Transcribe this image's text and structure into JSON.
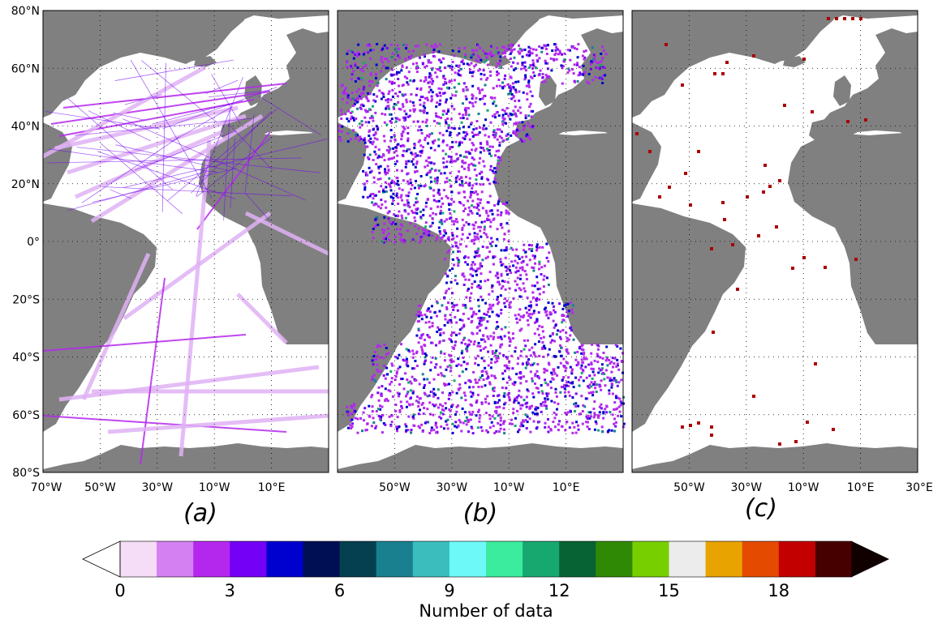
{
  "figure": {
    "panels": [
      {
        "id": "a",
        "label": "(a)",
        "lat_ticks": [
          "80°N",
          "60°N",
          "40°N",
          "20°N",
          "0°",
          "20°S",
          "40°S",
          "60°S",
          "80°S"
        ],
        "lon_ticks": [
          "70°W",
          "50°W",
          "30°W",
          "10°W",
          "10°E"
        ]
      },
      {
        "id": "b",
        "label": "(b)",
        "lat_ticks": [],
        "lon_ticks": [
          "50°W",
          "30°W",
          "10°W",
          "10°E"
        ]
      },
      {
        "id": "c",
        "label": "(c)",
        "lat_ticks": [],
        "lon_ticks": [
          "50°W",
          "30°W",
          "10°W",
          "10°E",
          "30°E"
        ]
      }
    ],
    "colorbar": {
      "title": "Number of data",
      "tick_labels": [
        "0",
        "3",
        "6",
        "9",
        "12",
        "15",
        "18"
      ],
      "tick_values": [
        0,
        3,
        6,
        9,
        12,
        15,
        18
      ],
      "min": 0,
      "max": 20,
      "extend": "both",
      "under_color": "#ffffff",
      "over_color": "#100000",
      "colors": [
        "#f5dcf7",
        "#d480f2",
        "#b428ee",
        "#7400f5",
        "#0000cf",
        "#000e54",
        "#054050",
        "#198090",
        "#3bbdbd",
        "#6ef9f9",
        "#3bec9e",
        "#17a870",
        "#076334",
        "#308904",
        "#78cf00",
        "#ececec",
        "#e8a300",
        "#e44a00",
        "#c30000",
        "#460000"
      ]
    },
    "map_colors": {
      "land": "#808080",
      "ocean": "#ffffff",
      "grid": "#000000"
    }
  }
}
